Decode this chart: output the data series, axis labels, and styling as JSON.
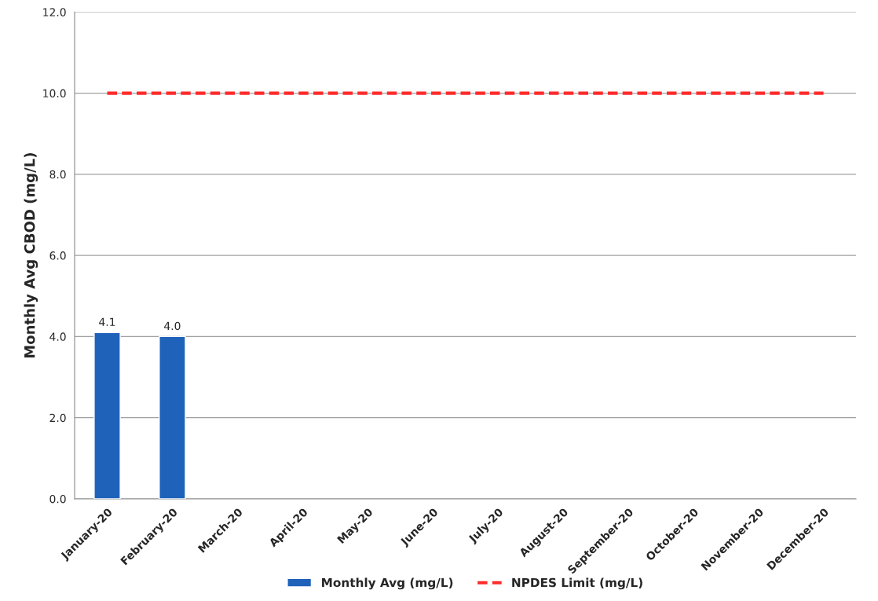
{
  "chart_data": {
    "type": "bar",
    "ylabel": "Monthly Avg CBOD (mg/L)",
    "categories": [
      "January-20",
      "February-20",
      "March-20",
      "April-20",
      "May-20",
      "June-20",
      "July-20",
      "August-20",
      "September-20",
      "October-20",
      "November-20",
      "December-20"
    ],
    "series": [
      {
        "name": "Monthly Avg (mg/L)",
        "color": "#1f62b9",
        "values": [
          4.1,
          4.0,
          null,
          null,
          null,
          null,
          null,
          null,
          null,
          null,
          null,
          null
        ],
        "value_labels": [
          "4.1",
          "4.0",
          null,
          null,
          null,
          null,
          null,
          null,
          null,
          null,
          null,
          null
        ]
      },
      {
        "name": "NPDES Limit (mg/L)",
        "type": "line",
        "color": "#ff2a2a",
        "line_style": "dashed",
        "values": [
          10.0,
          10.0,
          10.0,
          10.0,
          10.0,
          10.0,
          10.0,
          10.0,
          10.0,
          10.0,
          10.0,
          10.0
        ]
      }
    ],
    "ylim": [
      0,
      12
    ],
    "yticks": [
      {
        "value": 0,
        "label": "0.0"
      },
      {
        "value": 2,
        "label": "2.0"
      },
      {
        "value": 4,
        "label": "4.0"
      },
      {
        "value": 6,
        "label": "6.0"
      },
      {
        "value": 8,
        "label": "8.0"
      },
      {
        "value": 10,
        "label": "10.0"
      },
      {
        "value": 12,
        "label": "12.0"
      }
    ],
    "grid": "y",
    "legend": "bottom",
    "marker": "none"
  }
}
